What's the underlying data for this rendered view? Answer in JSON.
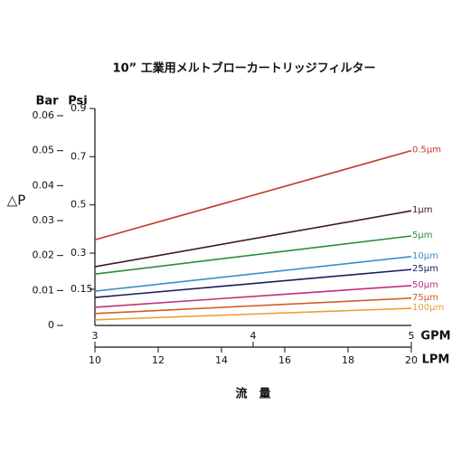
{
  "chart_data": {
    "type": "line",
    "title": "10” 工業用メルトブローカートリッジフィルター",
    "y_label": "△P",
    "y_unit": "Bar",
    "y2_unit": "Psi",
    "x_unit": "LPM",
    "x2_unit": "GPM",
    "x_label": "流　量",
    "x": [
      10,
      20
    ],
    "xlim": [
      10,
      20
    ],
    "xticks": [
      10,
      12,
      14,
      16,
      18,
      20
    ],
    "x2lim": [
      3,
      5
    ],
    "x2ticks": [
      3,
      4,
      5
    ],
    "ylim": [
      0,
      0.06
    ],
    "yticks": [
      0,
      0.01,
      0.02,
      0.03,
      0.04,
      0.05,
      0.06
    ],
    "y2lim": [
      0,
      0.87
    ],
    "y2ticks": [
      0.15,
      0.3,
      0.5,
      0.7,
      0.9
    ],
    "series": [
      {
        "name": "0.5μm",
        "color": "#c0392b",
        "values": [
          0.0245,
          0.05
        ]
      },
      {
        "name": "1μm",
        "color": "#3b1c1c",
        "values": [
          0.0168,
          0.0328
        ]
      },
      {
        "name": "5μm",
        "color": "#2e8b3e",
        "values": [
          0.0147,
          0.0256
        ]
      },
      {
        "name": "10μm",
        "color": "#3a8fc8",
        "values": [
          0.0098,
          0.0197
        ]
      },
      {
        "name": "25μm",
        "color": "#1c1c5c",
        "values": [
          0.008,
          0.016
        ]
      },
      {
        "name": "50μm",
        "color": "#c0307a",
        "values": [
          0.0052,
          0.0114
        ]
      },
      {
        "name": "75μm",
        "color": "#d0602a",
        "values": [
          0.0034,
          0.0078
        ]
      },
      {
        "name": "100μm",
        "color": "#e8a030",
        "values": [
          0.0016,
          0.0049
        ]
      }
    ]
  }
}
